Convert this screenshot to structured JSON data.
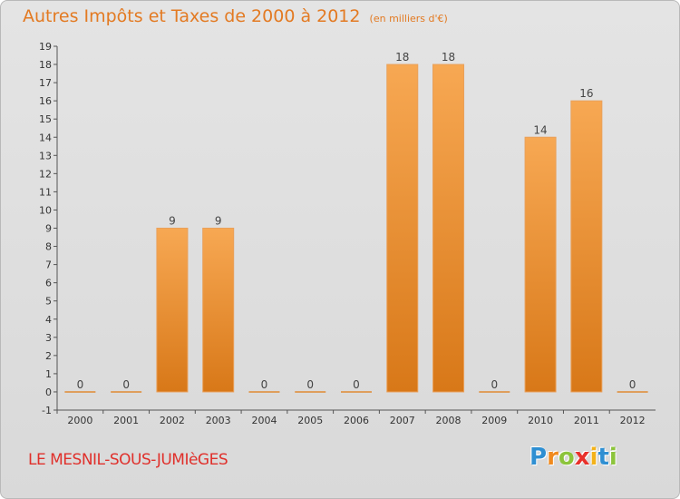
{
  "chart_data": {
    "type": "bar",
    "title": "Autres Impôts et Taxes de 2000 à 2012",
    "unit": "(en milliers d'€)",
    "categories": [
      "2000",
      "2001",
      "2002",
      "2003",
      "2004",
      "2005",
      "2006",
      "2007",
      "2008",
      "2009",
      "2010",
      "2011",
      "2012"
    ],
    "values": [
      0,
      0,
      9,
      9,
      0,
      0,
      0,
      18,
      18,
      0,
      14,
      16,
      0
    ],
    "value_labels": [
      "0",
      "0",
      "9",
      "9",
      "0",
      "0",
      "0",
      "18",
      "18",
      "0",
      "14",
      "16",
      "0"
    ],
    "xlabel": "",
    "ylabel": "",
    "ylim": [
      -1,
      19
    ],
    "yticks": [
      -1,
      0,
      1,
      2,
      3,
      4,
      5,
      6,
      7,
      8,
      9,
      10,
      11,
      12,
      13,
      14,
      15,
      16,
      17,
      18,
      19
    ],
    "grid": false,
    "legend": "none",
    "colors": {
      "bar_light": "#f7a853",
      "bar_dark": "#d87818",
      "zero_line": "#e08a33",
      "axis": "#555555",
      "title": "#e37a22"
    }
  },
  "footer": {
    "commune": "LE MESNIL-SOUS-JUMIèGES",
    "logo": "Proxiti",
    "logo_letters": [
      {
        "ch": "P",
        "color": "#2f8fd2"
      },
      {
        "ch": "r",
        "color": "#f08a1e"
      },
      {
        "ch": "o",
        "color": "#8cc43c"
      },
      {
        "ch": "x",
        "color": "#e8312b"
      },
      {
        "ch": "i",
        "color": "#f3b21a"
      },
      {
        "ch": "t",
        "color": "#2f8fd2"
      },
      {
        "ch": "i",
        "color": "#8cc43c"
      }
    ]
  }
}
